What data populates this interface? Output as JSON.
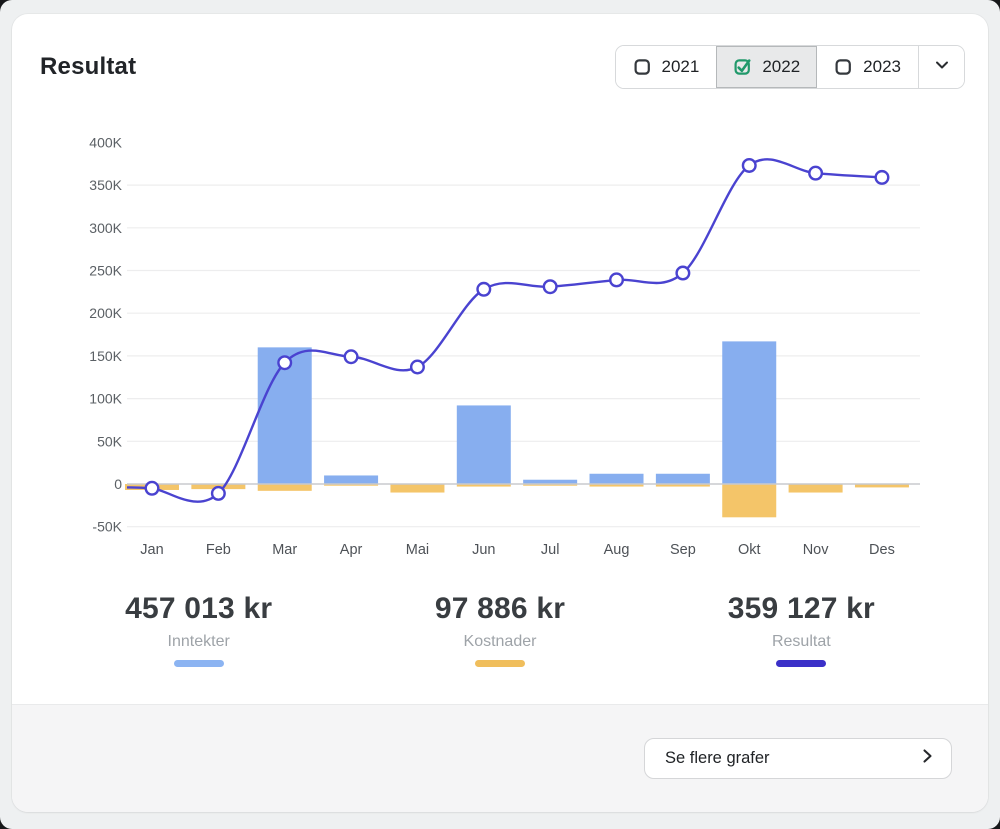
{
  "header": {
    "title": "Resultat",
    "years": {
      "options": [
        {
          "label": "2021",
          "checked": false
        },
        {
          "label": "2022",
          "checked": true
        },
        {
          "label": "2023",
          "checked": false
        }
      ]
    }
  },
  "chart_data": {
    "type": "combo-bar-line",
    "categories": [
      "Jan",
      "Feb",
      "Mar",
      "Apr",
      "Mai",
      "Jun",
      "Jul",
      "Aug",
      "Sep",
      "Okt",
      "Nov",
      "Des"
    ],
    "series": [
      {
        "name": "Inntekter",
        "type": "bar",
        "color": "#87AEEF",
        "values": [
          0,
          0,
          160000,
          10000,
          0,
          92000,
          5000,
          12000,
          12000,
          167000,
          0,
          0
        ]
      },
      {
        "name": "Kostnader",
        "type": "bar",
        "color": "#F4C569",
        "values": [
          -7000,
          -6000,
          -8000,
          -2000,
          -10000,
          -3000,
          -2000,
          -3000,
          -3000,
          -39000,
          -10000,
          -4000
        ]
      },
      {
        "name": "Resultat",
        "type": "line",
        "color": "#4A43D0",
        "values": [
          -5000,
          -11000,
          142000,
          149000,
          137000,
          228000,
          231000,
          239000,
          247000,
          373000,
          364000,
          359000
        ]
      }
    ],
    "ylim": [
      -50000,
      400000
    ],
    "yticks": [
      {
        "label": "400K",
        "value": 400000
      },
      {
        "label": "350K",
        "value": 350000
      },
      {
        "label": "300K",
        "value": 300000
      },
      {
        "label": "250K",
        "value": 250000
      },
      {
        "label": "200K",
        "value": 200000
      },
      {
        "label": "150K",
        "value": 150000
      },
      {
        "label": "100K",
        "value": 100000
      },
      {
        "label": "50K",
        "value": 50000
      },
      {
        "label": "0",
        "value": 0
      },
      {
        "label": "-50K",
        "value": -50000
      }
    ],
    "grid": true,
    "legend_position": "none",
    "colors": {
      "grid": "#ededee",
      "zero_line": "#c8cacd",
      "axis_text": "#5b6065",
      "month_text": "#4e5257",
      "marker_fill": "#ffffff"
    }
  },
  "summary": {
    "items": [
      {
        "value": "457 013 kr",
        "label": "Inntekter",
        "color": "#8CB4F2"
      },
      {
        "value": "97 886 kr",
        "label": "Kostnader",
        "color": "#F0BE5C"
      },
      {
        "value": "359 127 kr",
        "label": "Resultat",
        "color": "#3B30C8"
      }
    ]
  },
  "footer": {
    "more_label": "Se flere grafer"
  },
  "icons": {
    "year_checkbox": "checkbox",
    "year_dropdown": "chevron-down",
    "more_button": "chevron-right"
  },
  "accent_colors": {
    "checkbox_checked": "#21996B"
  }
}
